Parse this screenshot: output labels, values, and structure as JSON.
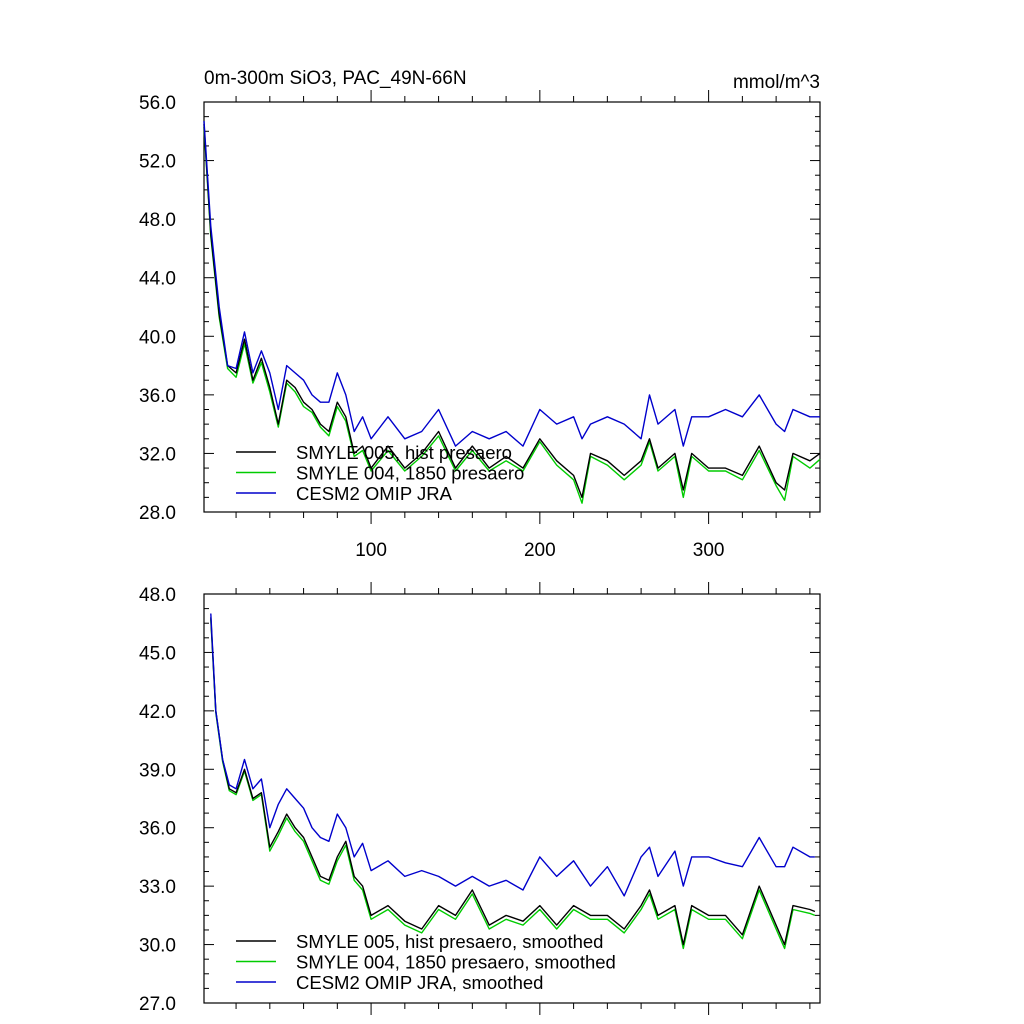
{
  "chart_data": [
    {
      "type": "line",
      "title": "0m-300m SiO3, PAC_49N-66N",
      "units": "mmol/m^3",
      "xlim": [
        1,
        366
      ],
      "ylim": [
        28.0,
        56.0
      ],
      "xticks": [
        100,
        200,
        300
      ],
      "yticks": [
        28.0,
        32.0,
        36.0,
        40.0,
        44.0,
        48.0,
        52.0,
        56.0
      ],
      "ytick_labels": [
        "28.0",
        "32.0",
        "36.0",
        "40.0",
        "44.0",
        "48.0",
        "52.0",
        "56.0"
      ],
      "xtick_labels": [
        "100",
        "200",
        "300"
      ],
      "legend": "bottom-left",
      "x": [
        1,
        5,
        10,
        15,
        20,
        25,
        30,
        35,
        40,
        45,
        50,
        55,
        60,
        65,
        70,
        75,
        80,
        85,
        90,
        95,
        100,
        110,
        120,
        130,
        140,
        150,
        160,
        170,
        180,
        190,
        200,
        210,
        220,
        225,
        230,
        240,
        250,
        260,
        265,
        270,
        280,
        285,
        290,
        300,
        310,
        320,
        330,
        340,
        345,
        350,
        360,
        366
      ],
      "series": [
        {
          "name": "SMYLE 005, hist presaero",
          "color": "#000000",
          "values": [
            54.5,
            47.0,
            41.5,
            38.0,
            37.5,
            39.8,
            37.0,
            38.5,
            36.5,
            34.0,
            37.0,
            36.5,
            35.5,
            35.0,
            34.0,
            33.5,
            35.5,
            34.5,
            32.0,
            32.5,
            31.0,
            32.5,
            31.0,
            32.0,
            33.5,
            31.0,
            32.5,
            31.0,
            31.8,
            31.0,
            33.0,
            31.5,
            30.5,
            29.0,
            32.0,
            31.5,
            30.5,
            31.5,
            33.0,
            31.0,
            32.0,
            29.5,
            32.0,
            31.0,
            31.0,
            30.5,
            32.5,
            30.0,
            29.5,
            32.0,
            31.5,
            32.0
          ]
        },
        {
          "name": "SMYLE 004, 1850 presaero",
          "color": "#00cc00",
          "values": [
            54.3,
            46.8,
            41.3,
            37.8,
            37.2,
            39.5,
            36.8,
            38.2,
            36.2,
            33.8,
            36.8,
            36.2,
            35.2,
            34.8,
            33.8,
            33.2,
            35.2,
            34.2,
            31.8,
            32.2,
            30.8,
            32.2,
            30.8,
            31.8,
            33.2,
            30.8,
            32.2,
            30.8,
            31.5,
            30.8,
            32.8,
            31.2,
            30.2,
            28.6,
            31.8,
            31.2,
            30.2,
            31.2,
            32.8,
            30.8,
            31.8,
            29.0,
            31.8,
            30.8,
            30.8,
            30.2,
            32.2,
            29.8,
            28.8,
            31.8,
            31.0,
            31.6
          ]
        },
        {
          "name": "CESM2 OMIP JRA",
          "color": "#0000cc",
          "values": [
            54.7,
            47.5,
            42.0,
            38.0,
            37.8,
            40.3,
            37.5,
            39.0,
            37.5,
            35.0,
            38.0,
            37.5,
            37.0,
            36.0,
            35.5,
            35.5,
            37.5,
            36.0,
            33.5,
            34.5,
            33.0,
            34.5,
            33.0,
            33.5,
            35.0,
            32.5,
            33.5,
            33.0,
            33.5,
            32.5,
            35.0,
            34.0,
            34.5,
            33.0,
            34.0,
            34.5,
            34.0,
            33.0,
            36.0,
            34.0,
            35.0,
            32.5,
            34.5,
            34.5,
            35.0,
            34.5,
            36.0,
            34.0,
            33.5,
            35.0,
            34.5,
            34.5
          ]
        }
      ]
    },
    {
      "type": "line",
      "xlim": [
        1,
        366
      ],
      "ylim": [
        27.0,
        48.0
      ],
      "xticks": [
        100,
        200,
        300
      ],
      "yticks": [
        27.0,
        30.0,
        33.0,
        36.0,
        39.0,
        42.0,
        45.0,
        48.0
      ],
      "ytick_labels": [
        "27.0",
        "30.0",
        "33.0",
        "36.0",
        "39.0",
        "42.0",
        "45.0",
        "48.0"
      ],
      "legend": "bottom-left",
      "x": [
        5,
        8,
        12,
        16,
        20,
        25,
        30,
        35,
        40,
        45,
        50,
        55,
        60,
        65,
        70,
        75,
        80,
        85,
        90,
        95,
        100,
        110,
        120,
        130,
        140,
        150,
        160,
        170,
        180,
        190,
        200,
        210,
        220,
        230,
        240,
        250,
        260,
        265,
        270,
        280,
        285,
        290,
        300,
        310,
        320,
        330,
        340,
        345,
        350,
        360,
        363
      ],
      "series": [
        {
          "name": "SMYLE 005, hist presaero, smoothed",
          "color": "#000000",
          "values": [
            46.8,
            42.0,
            39.5,
            38.0,
            37.8,
            39.0,
            37.5,
            37.8,
            35.0,
            35.8,
            36.7,
            36.0,
            35.5,
            34.5,
            33.5,
            33.3,
            34.5,
            35.3,
            33.5,
            33.0,
            31.5,
            32.0,
            31.2,
            30.8,
            32.0,
            31.5,
            32.8,
            31.0,
            31.5,
            31.2,
            32.0,
            31.0,
            32.0,
            31.5,
            31.5,
            30.8,
            32.0,
            32.8,
            31.5,
            32.0,
            30.0,
            32.0,
            31.5,
            31.5,
            30.5,
            33.0,
            31.0,
            30.0,
            32.0,
            31.8,
            31.7
          ]
        },
        {
          "name": "SMYLE 004, 1850 presaero, smoothed",
          "color": "#00cc00",
          "values": [
            46.7,
            41.9,
            39.4,
            37.9,
            37.7,
            38.9,
            37.4,
            37.7,
            34.8,
            35.6,
            36.5,
            35.8,
            35.3,
            34.3,
            33.3,
            33.1,
            34.3,
            35.1,
            33.3,
            32.8,
            31.3,
            31.8,
            31.0,
            30.6,
            31.8,
            31.3,
            32.6,
            30.8,
            31.3,
            31.0,
            31.8,
            30.8,
            31.8,
            31.3,
            31.3,
            30.6,
            31.8,
            32.6,
            31.3,
            31.8,
            29.8,
            31.8,
            31.3,
            31.3,
            30.3,
            32.8,
            30.8,
            29.8,
            31.8,
            31.6,
            31.5
          ]
        },
        {
          "name": "CESM2 OMIP JRA, smoothed",
          "color": "#0000cc",
          "values": [
            47.0,
            42.0,
            39.5,
            38.2,
            38.0,
            39.5,
            38.0,
            38.5,
            36.0,
            37.2,
            38.0,
            37.5,
            37.0,
            36.0,
            35.5,
            35.3,
            36.7,
            36.0,
            34.5,
            35.2,
            33.8,
            34.3,
            33.5,
            33.8,
            33.5,
            33.0,
            33.5,
            33.0,
            33.3,
            32.8,
            34.5,
            33.5,
            34.3,
            33.0,
            34.0,
            32.5,
            34.5,
            35.0,
            33.5,
            34.8,
            33.0,
            34.5,
            34.5,
            34.2,
            34.0,
            35.5,
            34.0,
            34.0,
            35.0,
            34.5,
            34.5
          ]
        }
      ]
    }
  ]
}
